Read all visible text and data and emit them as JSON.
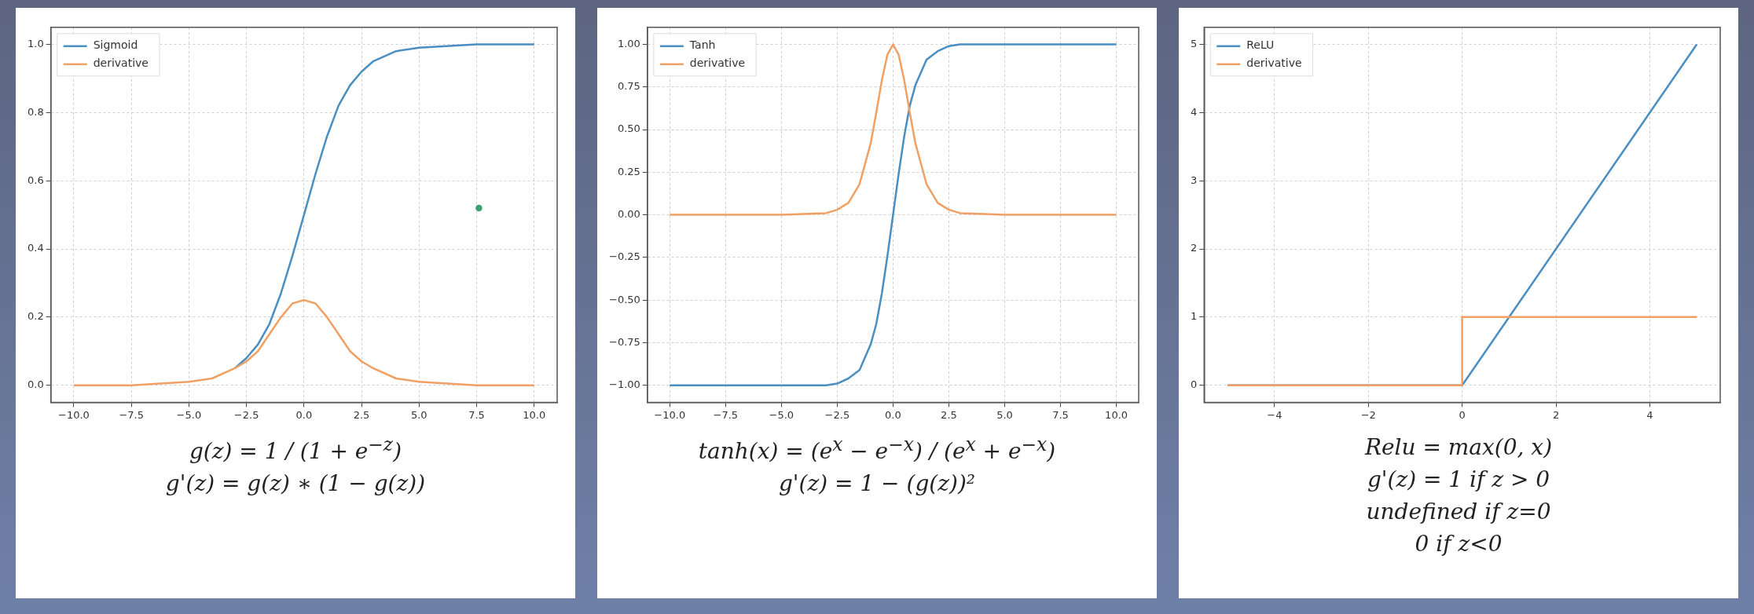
{
  "chart_data": [
    {
      "type": "line",
      "xlim": [
        -11,
        11
      ],
      "ylim": [
        -0.05,
        1.05
      ],
      "xticks": [
        {
          "value": -10,
          "label": "−10.0"
        },
        {
          "value": -7.5,
          "label": "−7.5"
        },
        {
          "value": -5,
          "label": "−5.0"
        },
        {
          "value": -2.5,
          "label": "−2.5"
        },
        {
          "value": 0,
          "label": "0.0"
        },
        {
          "value": 2.5,
          "label": "2.5"
        },
        {
          "value": 5,
          "label": "5.0"
        },
        {
          "value": 7.5,
          "label": "7.5"
        },
        {
          "value": 10,
          "label": "10.0"
        }
      ],
      "yticks": [
        {
          "value": 0,
          "label": "0.0"
        },
        {
          "value": 0.2,
          "label": "0.2"
        },
        {
          "value": 0.4,
          "label": "0.4"
        },
        {
          "value": 0.6,
          "label": "0.6"
        },
        {
          "value": 0.8,
          "label": "0.8"
        },
        {
          "value": 1,
          "label": "1.0"
        }
      ],
      "x": [
        -10,
        -7.5,
        -5,
        -4,
        -3,
        -2.5,
        -2,
        -1.5,
        -1,
        -0.5,
        0,
        0.5,
        1,
        1.5,
        2,
        2.5,
        3,
        4,
        5,
        7.5,
        10
      ],
      "series": [
        {
          "name": "Sigmoid",
          "color": "#4a8fc2",
          "values": [
            null,
            null,
            null,
            null,
            0.05,
            0.08,
            0.12,
            0.18,
            0.27,
            0.38,
            0.5,
            0.62,
            0.73,
            0.82,
            0.88,
            0.92,
            0.95,
            0.98,
            0.99,
            1,
            1
          ]
        },
        {
          "name": "derivative",
          "color": "#f0a063",
          "values": [
            0,
            0,
            0.01,
            0.02,
            0.05,
            0.07,
            0.1,
            0.15,
            0.2,
            0.24,
            0.25,
            0.24,
            0.2,
            0.15,
            0.1,
            0.07,
            0.05,
            0.02,
            0.01,
            0,
            0
          ]
        },
        {
          "type": "scatter",
          "color": "#3aa070",
          "x": [
            7.6
          ],
          "values": [
            0.52
          ]
        }
      ],
      "grid": true,
      "legend": "top left",
      "line_style": "solid",
      "annotations": [
        "g(z) = 1 / (1 + e$^{−z}$)",
        "g'(z) = g(z) ∗ (1 − g(z))"
      ]
    },
    {
      "type": "line",
      "xlim": [
        -11,
        11
      ],
      "ylim": [
        -1.1,
        1.1
      ],
      "xticks": [
        {
          "value": -10,
          "label": "−10.0"
        },
        {
          "value": -7.5,
          "label": "−7.5"
        },
        {
          "value": -5,
          "label": "−5.0"
        },
        {
          "value": -2.5,
          "label": "−2.5"
        },
        {
          "value": 0,
          "label": "0.0"
        },
        {
          "value": 2.5,
          "label": "2.5"
        },
        {
          "value": 5,
          "label": "5.0"
        },
        {
          "value": 7.5,
          "label": "7.5"
        },
        {
          "value": 10,
          "label": "10.0"
        }
      ],
      "yticks": [
        {
          "value": -1,
          "label": "−1.00"
        },
        {
          "value": -0.75,
          "label": "−0.75"
        },
        {
          "value": -0.5,
          "label": "−0.50"
        },
        {
          "value": -0.25,
          "label": "−0.25"
        },
        {
          "value": 0,
          "label": "0.00"
        },
        {
          "value": 0.25,
          "label": "0.25"
        },
        {
          "value": 0.5,
          "label": "0.50"
        },
        {
          "value": 0.75,
          "label": "0.75"
        },
        {
          "value": 1,
          "label": "1.00"
        }
      ],
      "x": [
        -10,
        -5,
        -3,
        -2.5,
        -2,
        -1.5,
        -1,
        -0.75,
        -0.5,
        -0.25,
        0,
        0.25,
        0.5,
        0.75,
        1,
        1.5,
        2,
        2.5,
        3,
        5,
        10
      ],
      "series": [
        {
          "name": "Tanh",
          "color": "#4a8fc2",
          "values": [
            -1,
            -1,
            -1,
            -0.99,
            -0.96,
            -0.91,
            -0.76,
            -0.64,
            -0.46,
            -0.24,
            0,
            0.24,
            0.46,
            0.64,
            0.76,
            0.91,
            0.96,
            0.99,
            1,
            1,
            1
          ]
        },
        {
          "name": "derivative",
          "color": "#f0a063",
          "values": [
            0,
            0,
            0.01,
            0.03,
            0.07,
            0.18,
            0.42,
            0.6,
            0.79,
            0.94,
            1,
            0.94,
            0.79,
            0.6,
            0.42,
            0.18,
            0.07,
            0.03,
            0.01,
            0,
            0
          ]
        }
      ],
      "grid": true,
      "legend": "top left",
      "line_style": "solid",
      "annotations": [
        "tanh(x) = (e$^{x}$ − e$^{−x}$) / (e$^{x}$ + e$^{−x}$)",
        "g'(z) = 1 − (g(z))²"
      ]
    },
    {
      "type": "line",
      "xlim": [
        -5.5,
        5.5
      ],
      "ylim": [
        -0.25,
        5.25
      ],
      "xticks": [
        {
          "value": -4,
          "label": "−4"
        },
        {
          "value": -2,
          "label": "−2"
        },
        0,
        2,
        4
      ],
      "yticks": [
        0,
        1,
        2,
        3,
        4,
        5
      ],
      "x": [
        -5,
        0,
        5
      ],
      "series": [
        {
          "name": "ReLU",
          "color": "#4a8fc2",
          "values": [
            0,
            0,
            5
          ]
        },
        {
          "name": "derivative",
          "type": "step",
          "color": "#f0a063",
          "values": [
            0,
            1,
            1
          ]
        }
      ],
      "grid": true,
      "legend": "top left",
      "line_style": "solid",
      "annotations": [
        "Relu = max(0, x)",
        "g'(z) = 1 if z > 0",
        "undefined if z=0",
        "0 if z<0"
      ]
    }
  ]
}
